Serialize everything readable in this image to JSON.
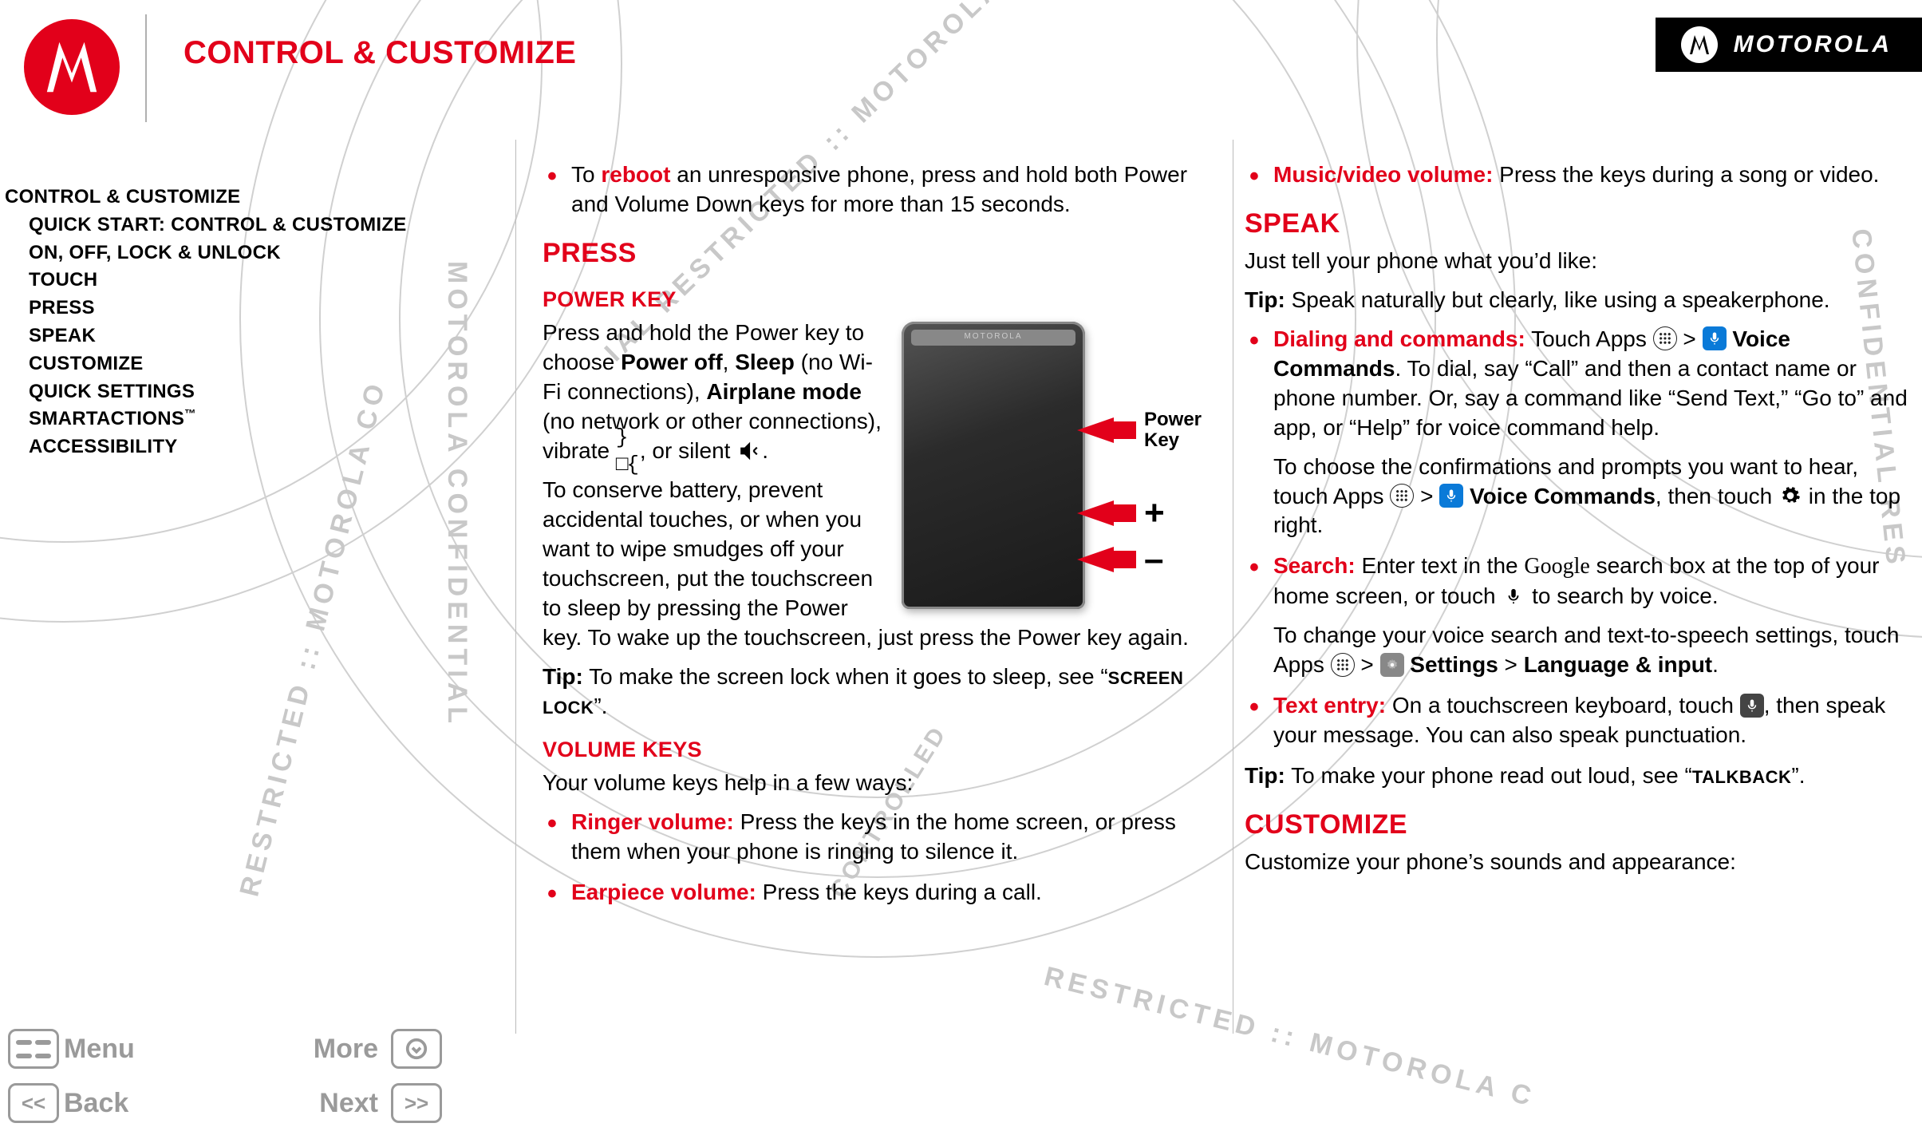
{
  "colors": {
    "accent": "#e2001a",
    "gray": "#9a9a9a"
  },
  "brand": "MOTOROLA",
  "page_title": "CONTROL & CUSTOMIZE",
  "toc": [
    {
      "label": "CONTROL & CUSTOMIZE",
      "indent": false
    },
    {
      "label": "QUICK START: CONTROL & CUSTOMIZE",
      "indent": true
    },
    {
      "label": "ON, OFF, LOCK & UNLOCK",
      "indent": true
    },
    {
      "label": "TOUCH",
      "indent": true
    },
    {
      "label": "PRESS",
      "indent": true
    },
    {
      "label": "SPEAK",
      "indent": true
    },
    {
      "label": "CUSTOMIZE",
      "indent": true
    },
    {
      "label": "QUICK SETTINGS",
      "indent": true
    },
    {
      "label": "SMARTACTIONS™",
      "indent": true
    },
    {
      "label": "ACCESSIBILITY",
      "indent": true
    }
  ],
  "col1": {
    "reboot_pre": "To ",
    "reboot_word": "reboot",
    "reboot_post": " an unresponsive phone, press and hold both Power and Volume Down keys for more than 15 seconds.",
    "h_press": "PRESS",
    "h_power": "POWER KEY",
    "power_p1a": "Press and hold the Power key to choose ",
    "power_b1": "Power off",
    "power_p1b": ", ",
    "power_b2": "Sleep",
    "power_p1c": " (no Wi-Fi connections), ",
    "power_b3": "Airplane mode",
    "power_p1d": " (no network or other connections), vibrate ",
    "power_vib": "}□{",
    "power_p1e": ", or silent ",
    "power_p1f": ".",
    "power_p2": "To conserve battery, prevent accidental touches, or when you want to wipe smudges off your touchscreen, put the touchscreen to sleep by pressing the Power key. To wake up the touchscreen, just press the Power key again.",
    "power_tip_a": "Tip:",
    "power_tip_b": " To make the screen lock when it goes to sleep, see “",
    "power_tip_link": "SCREEN LOCK",
    "power_tip_c": "”.",
    "h_volume": "VOLUME KEYS",
    "vol_intro": "Your volume keys help in a few ways:",
    "vol_items": [
      {
        "lead": "Ringer volume:",
        "text": " Press the keys in the home screen, or press them when your phone is ringing to silence it."
      },
      {
        "lead": "Earpiece volume:",
        "text": " Press the keys during a call."
      }
    ],
    "phone_labels": {
      "power": "Power\nKey",
      "plus": "+",
      "minus": "–"
    }
  },
  "col2": {
    "music": {
      "lead": "Music/video volume:",
      "text": " Press the keys during a song or video."
    },
    "h_speak": "SPEAK",
    "speak_intro": "Just tell your phone what you’d like:",
    "speak_tip_a": "Tip:",
    "speak_tip_b": " Speak naturally but clearly, like using a speakerphone.",
    "dial_lead": "Dialing and commands:",
    "dial_a": " Touch Apps ",
    "dial_b": " > ",
    "dial_vc": " Voice Commands",
    "dial_c": ". To dial, say “Call” and then a contact name or phone number. Or, say a command like “Send Text,” “Go to” and app, or “Help” for voice command help.",
    "dial_p2a": "To choose the confirmations and prompts you want to hear, touch Apps ",
    "dial_p2b": " > ",
    "dial_p2c": " Voice Commands",
    "dial_p2d": ", then touch ",
    "dial_p2e": " in the top right.",
    "search_lead": "Search:",
    "search_a": " Enter text in the ",
    "search_google": "Google",
    "search_b": " search box at the top of your home screen, or touch ",
    "search_c": " to search by voice.",
    "search_p2a": "To change your voice search and text-to-speech settings, touch Apps ",
    "search_p2b": " > ",
    "search_set": " Settings",
    "search_p2c": " > ",
    "search_lang": "Language & input",
    "search_p2d": ".",
    "text_lead": "Text entry:",
    "text_a": " On a touchscreen keyboard, touch ",
    "text_b": ", then speak your message. You can also speak punctuation.",
    "text_tip_a": "Tip:",
    "text_tip_b": " To make your phone read out loud, see “",
    "text_tip_link": "TALKBACK",
    "text_tip_c": "”.",
    "h_customize": "CUSTOMIZE",
    "customize_intro": "Customize your phone’s sounds and appearance:"
  },
  "nav": {
    "menu": "Menu",
    "more": "More",
    "back": "Back",
    "next": "Next"
  }
}
